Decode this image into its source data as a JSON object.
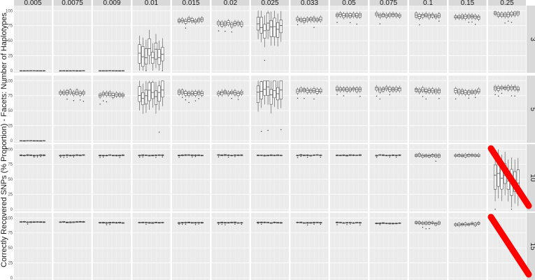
{
  "chart_data": {
    "type": "boxplot-facet-grid",
    "ylabel": "Correctly Recovered SNPs (% Proportion)  -  Facets: Number of Haplotypes",
    "col_facets": [
      "0.005",
      "0.0075",
      "0.009",
      "0.01",
      "0.015",
      "0.02",
      "0.025",
      "0.033",
      "0.05",
      "0.075",
      "0.1",
      "0.15",
      "0.25"
    ],
    "row_facets": [
      "3",
      "5",
      "10",
      "15"
    ],
    "ylim": [
      0,
      105
    ],
    "y_ticks": [
      "0",
      "25",
      "50",
      "75",
      "100"
    ],
    "grid": true,
    "boxes_per_panel": 8,
    "panel_medians": [
      [
        0,
        0,
        0,
        30,
        84,
        78,
        75,
        85,
        93,
        93,
        92,
        90,
        95
      ],
      [
        0,
        80,
        77,
        78,
        80,
        80,
        82,
        84,
        86,
        86,
        84,
        82,
        87
      ],
      [
        90,
        90,
        90,
        90,
        90,
        90,
        90,
        90,
        90,
        90,
        90,
        90,
        55
      ],
      [
        93,
        93,
        92,
        92,
        92,
        92,
        92,
        92,
        92,
        91,
        91,
        90,
        null
      ]
    ],
    "crossed_out_panels": [
      [
        2,
        12
      ],
      [
        3,
        12
      ]
    ],
    "cross_color": "#ff0000"
  }
}
